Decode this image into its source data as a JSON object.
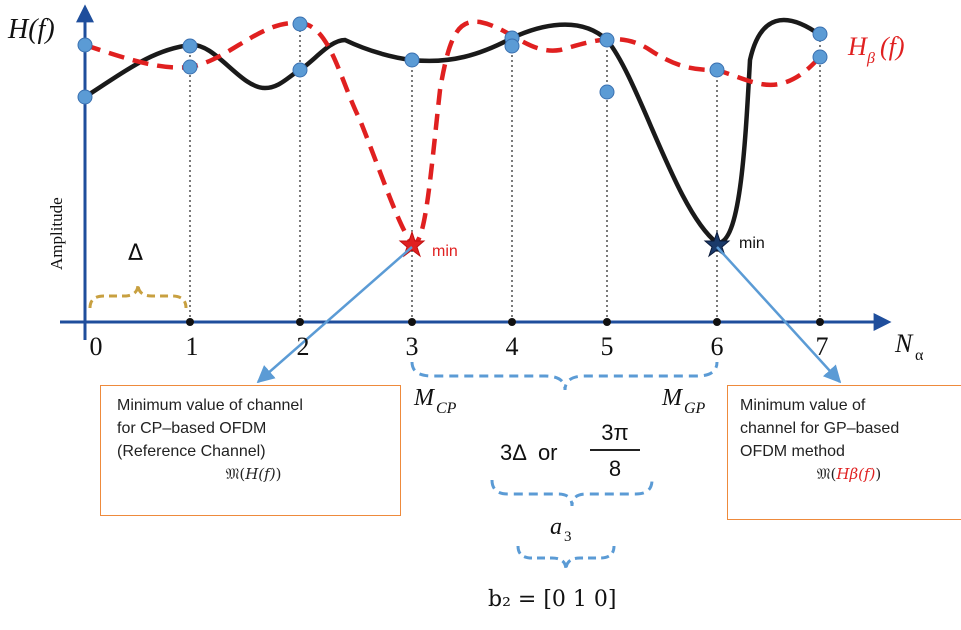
{
  "y_axis": {
    "symbol": "H(f)",
    "label": "Amplitude"
  },
  "x_axis": {
    "symbol": "N",
    "subscript": "α",
    "ticks": [
      "0",
      "1",
      "2",
      "3",
      "4",
      "5",
      "6",
      "7"
    ]
  },
  "curve_gp_label": {
    "symbol": "H",
    "subscript": "β",
    "arg": "(f)"
  },
  "delta_label": "Δ",
  "min_labels": {
    "red": "min",
    "black": "min"
  },
  "m_labels": {
    "cp": "M",
    "cp_sub": "CP",
    "gp": "M",
    "gp_sub": "GP"
  },
  "middle": {
    "or_text": "3Δ  or",
    "frac_num": "3π",
    "frac_den": "8",
    "a_label": "a",
    "a_sub": "3",
    "b_eq": "b₂ = [0 1 0]"
  },
  "callout_cp": {
    "line1": "Minimum value of channel",
    "line2": "for CP–based OFDM",
    "line3": "(Reference Channel)",
    "formula_pre": "𝔐(",
    "formula_arg": "H(f)",
    "formula_post": ")"
  },
  "callout_gp": {
    "line1": "Minimum value of",
    "line2": "channel for GP–based",
    "line3": "OFDM method",
    "formula_pre": "𝔐(",
    "formula_arg": "Hβ(f)",
    "formula_post": ")"
  },
  "colors": {
    "axis": "#1f4e9c",
    "black_curve": "#1a1a1a",
    "red_curve": "#e02020",
    "marker": "#5b9bd5",
    "brace_blue": "#5b9bd5",
    "brace_gold": "#c8a040",
    "callout_border": "#ee8a3c"
  }
}
